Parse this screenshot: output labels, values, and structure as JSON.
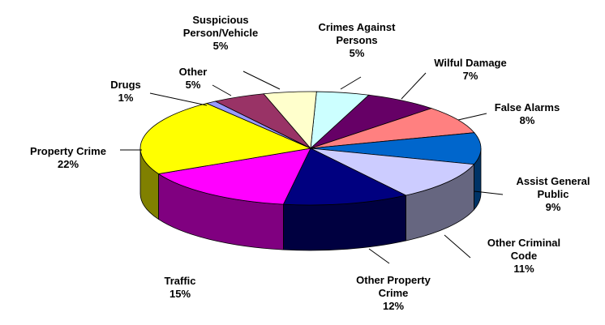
{
  "chart_data": {
    "type": "pie",
    "categories": [
      "Crimes Against Persons",
      "Wilful Damage",
      "False Alarms",
      "Assist General Public",
      "Other Criminal Code",
      "Other Property Crime",
      "Traffic",
      "Property Crime",
      "Drugs",
      "Other",
      "Suspicious Person/Vehicle"
    ],
    "values": [
      5,
      7,
      8,
      9,
      11,
      12,
      15,
      22,
      1,
      5,
      5
    ],
    "value_labels": [
      "5%",
      "7%",
      "8%",
      "9%",
      "11%",
      "12%",
      "15%",
      "22%",
      "1%",
      "5%",
      "5%"
    ],
    "colors": [
      "#ccffff",
      "#660066",
      "#ff8080",
      "#0066cc",
      "#ccccff",
      "#000080",
      "#ff00ff",
      "#ffff00",
      "#9999ff",
      "#993366",
      "#ffffcc"
    ]
  }
}
